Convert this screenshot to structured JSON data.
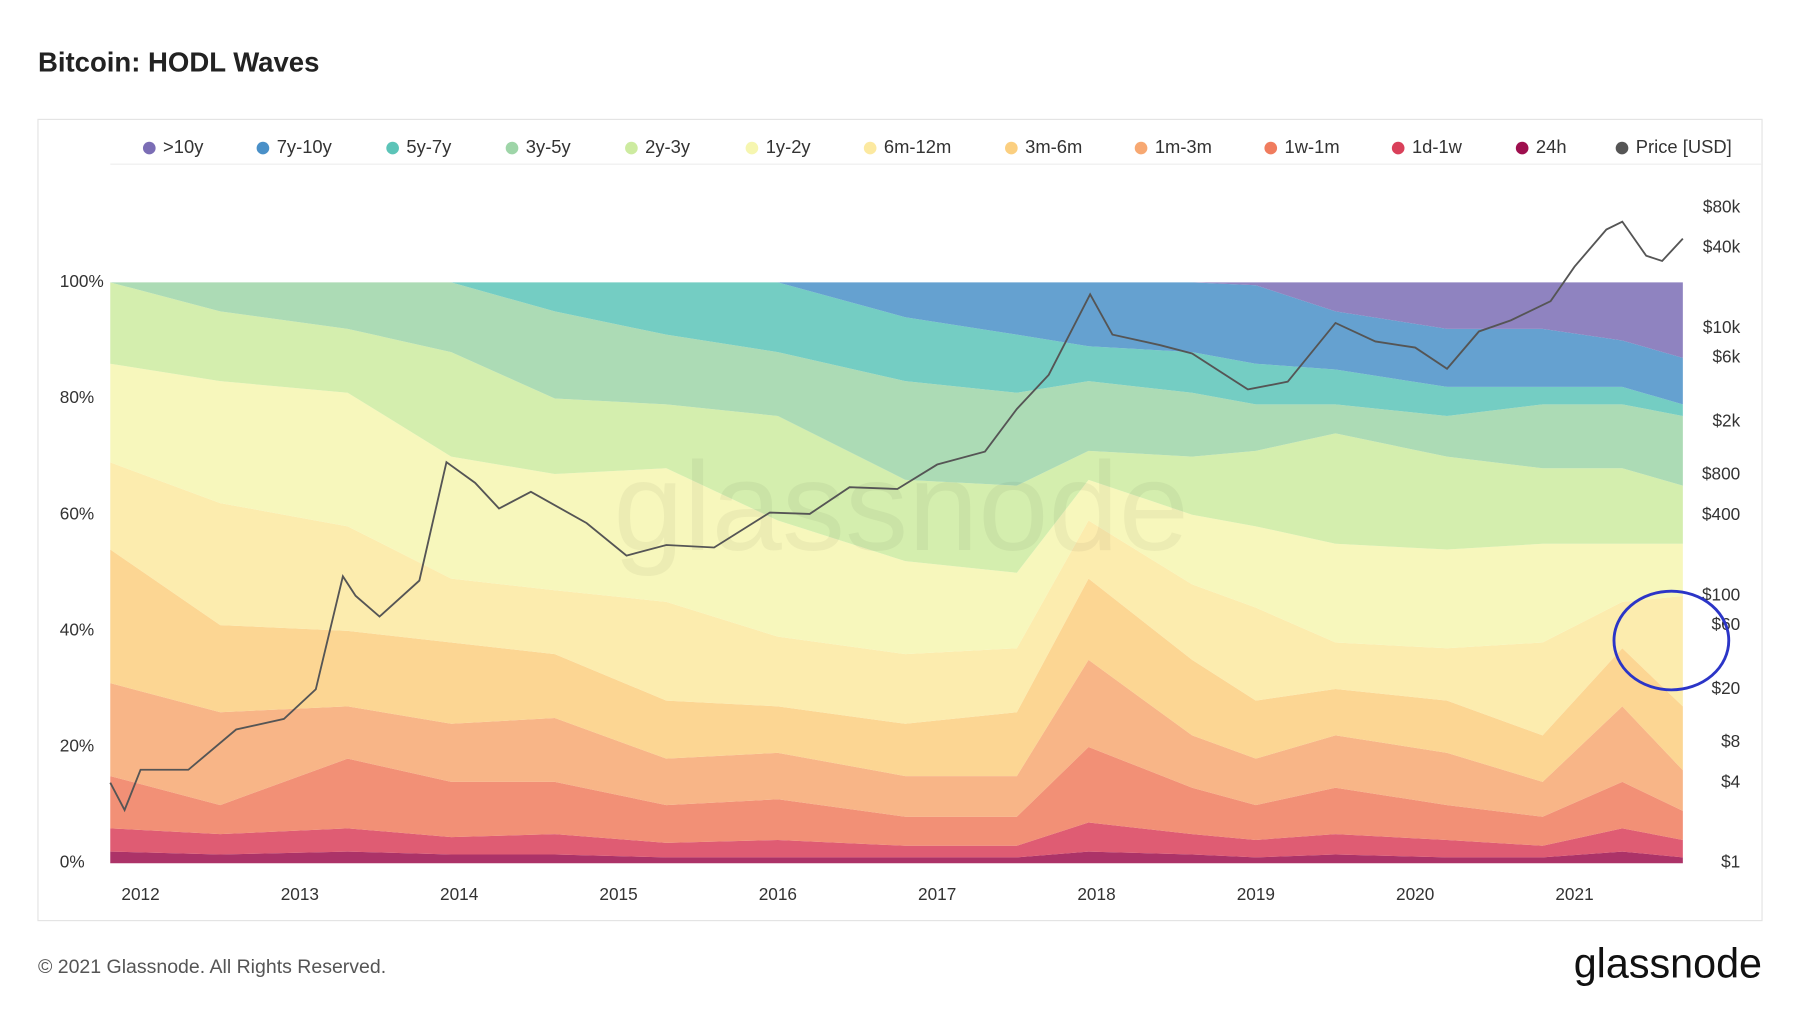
{
  "chart_data": {
    "type": "stacked-area",
    "title": "Bitcoin: HODL Waves",
    "watermark": "glassnode",
    "footer": "© 2021 Glassnode. All Rights Reserved.",
    "logo": "glassnode",
    "x": [
      2011.81,
      2012.5,
      2013.3,
      2013.95,
      2014.6,
      2015.3,
      2016.0,
      2016.8,
      2017.5,
      2017.95,
      2018.6,
      2019.0,
      2019.5,
      2020.2,
      2020.8,
      2021.3,
      2021.68
    ],
    "xlim": [
      2011.81,
      2021.68
    ],
    "xticks": [
      2012,
      2013,
      2014,
      2015,
      2016,
      2017,
      2018,
      2019,
      2020,
      2021
    ],
    "ylim": [
      0,
      100
    ],
    "yticks": [
      {
        "value": 0,
        "label": "0%"
      },
      {
        "value": 20,
        "label": "20%"
      },
      {
        "value": 40,
        "label": "40%"
      },
      {
        "value": 60,
        "label": "60%"
      },
      {
        "value": 80,
        "label": "80%"
      },
      {
        "value": 100,
        "label": "100%"
      }
    ],
    "y2lim": [
      1,
      80000
    ],
    "y2log": true,
    "y2ticks": [
      {
        "value": 1,
        "label": "$1"
      },
      {
        "value": 4,
        "label": "$4"
      },
      {
        "value": 8,
        "label": "$8"
      },
      {
        "value": 20,
        "label": "$20"
      },
      {
        "value": 60,
        "label": "$60"
      },
      {
        "value": 100,
        "label": "$100"
      },
      {
        "value": 400,
        "label": "$400"
      },
      {
        "value": 800,
        "label": "$800"
      },
      {
        "value": 2000,
        "label": "$2k"
      },
      {
        "value": 6000,
        "label": "$6k"
      },
      {
        "value": 10000,
        "label": "$10k"
      },
      {
        "value": 40000,
        "label": "$40k"
      },
      {
        "value": 80000,
        "label": "$80k"
      }
    ],
    "grid": false,
    "legend": "top",
    "series": [
      {
        "name": ">10y",
        "color": "#7b6db5",
        "values": [
          0,
          0,
          0,
          0,
          0,
          0,
          0,
          0,
          0,
          0,
          0,
          0.5,
          5,
          8,
          8,
          10,
          13
        ]
      },
      {
        "name": "7y-10y",
        "color": "#4a90c8",
        "values": [
          0,
          0,
          0,
          0,
          0,
          0,
          0,
          6,
          9,
          11,
          12,
          13.5,
          10,
          10,
          10,
          8,
          8
        ]
      },
      {
        "name": "5y-7y",
        "color": "#5cc4b8",
        "values": [
          0,
          0,
          0,
          0,
          5,
          9,
          12,
          11,
          10,
          6,
          7,
          7,
          6,
          5,
          3,
          3,
          2
        ]
      },
      {
        "name": "3y-5y",
        "color": "#9ed5a8",
        "values": [
          0,
          5,
          8,
          12,
          15,
          12,
          11,
          17,
          16,
          12,
          11,
          8,
          5,
          7,
          11,
          11,
          12
        ]
      },
      {
        "name": "2y-3y",
        "color": "#cdeba0",
        "values": [
          14,
          12,
          11,
          18,
          13,
          11,
          18,
          14,
          15,
          5,
          10,
          13,
          19,
          16,
          13,
          13,
          10
        ]
      },
      {
        "name": "1y-2y",
        "color": "#f6f6b0",
        "values": [
          17,
          21,
          23,
          21,
          20,
          23,
          20,
          16,
          13,
          7,
          12,
          14,
          17,
          17,
          17,
          10,
          9
        ]
      },
      {
        "name": "6m-12m",
        "color": "#fce9a0",
        "values": [
          15,
          21,
          18,
          11,
          11,
          17,
          12,
          12,
          11,
          10,
          13,
          16,
          8,
          9,
          16,
          8,
          19
        ]
      },
      {
        "name": "3m-6m",
        "color": "#fbcf80",
        "values": [
          23,
          15,
          13,
          14,
          11,
          10,
          8,
          9,
          11,
          14,
          13,
          10,
          8,
          9,
          8,
          10,
          11
        ]
      },
      {
        "name": "1m-3m",
        "color": "#f7a872",
        "values": [
          16,
          16,
          9,
          10,
          11,
          8,
          8,
          7,
          7,
          15,
          9,
          8,
          9,
          9,
          6,
          13,
          7
        ]
      },
      {
        "name": "1w-1m",
        "color": "#f07c5e",
        "values": [
          9,
          5,
          12,
          9.5,
          9,
          6.5,
          7,
          5,
          5,
          13,
          8,
          6,
          8,
          6,
          5,
          8,
          5
        ]
      },
      {
        "name": "1d-1w",
        "color": "#d9405a",
        "values": [
          4,
          3.5,
          4,
          3,
          3.5,
          2.5,
          3,
          2,
          2,
          5,
          3.5,
          3,
          3.5,
          3,
          2,
          4,
          3
        ]
      },
      {
        "name": "24h",
        "color": "#9e0f4e",
        "values": [
          2,
          1.5,
          2,
          1.5,
          1.5,
          1,
          1,
          1,
          1,
          2,
          1.5,
          1,
          1.5,
          1,
          1,
          2,
          1
        ]
      },
      {
        "name": "Price [USD]",
        "color": "#555555",
        "axis": "y2",
        "x": [
          2011.81,
          2011.9,
          2012.0,
          2012.3,
          2012.6,
          2012.9,
          2013.1,
          2013.27,
          2013.35,
          2013.5,
          2013.75,
          2013.92,
          2014.1,
          2014.25,
          2014.45,
          2014.8,
          2015.05,
          2015.3,
          2015.6,
          2015.95,
          2016.2,
          2016.45,
          2016.75,
          2017.0,
          2017.3,
          2017.5,
          2017.7,
          2017.96,
          2018.1,
          2018.4,
          2018.6,
          2018.95,
          2019.2,
          2019.5,
          2019.75,
          2020.0,
          2020.2,
          2020.4,
          2020.6,
          2020.85,
          2021.0,
          2021.2,
          2021.3,
          2021.45,
          2021.55,
          2021.68
        ],
        "values": [
          4,
          2.5,
          5,
          5,
          10,
          12,
          20,
          140,
          100,
          70,
          130,
          1000,
          700,
          450,
          600,
          350,
          200,
          240,
          230,
          420,
          410,
          650,
          630,
          960,
          1200,
          2500,
          4500,
          18000,
          9000,
          7500,
          6500,
          3500,
          4000,
          11000,
          8000,
          7200,
          5000,
          9500,
          11500,
          16000,
          29000,
          55000,
          63000,
          35000,
          32000,
          47000
        ]
      }
    ]
  }
}
